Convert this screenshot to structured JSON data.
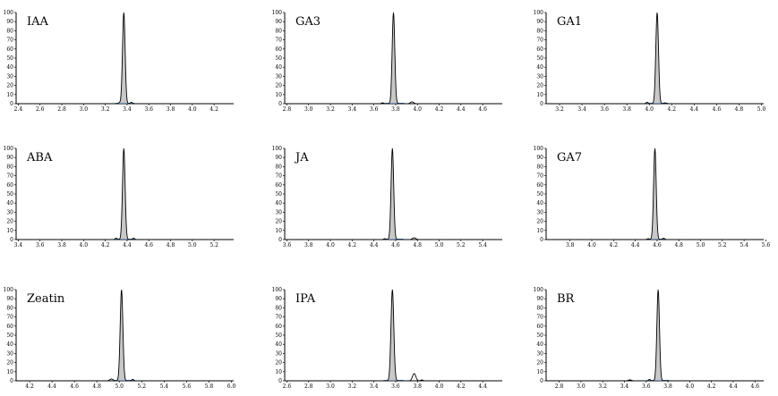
{
  "chart_data": [
    {
      "type": "line",
      "label": "IAA",
      "ylim": [
        0,
        100
      ],
      "xlim": [
        2.38,
        4.38
      ],
      "yticks": [
        0,
        10,
        20,
        30,
        40,
        50,
        60,
        70,
        80,
        90,
        100
      ],
      "xticks": [
        "2.4",
        "2.6",
        "2.8",
        "3.0",
        "3.2",
        "3.4",
        "3.6",
        "3.8",
        "4.0",
        "4.2"
      ],
      "peaks": [
        {
          "rt": 3.37,
          "height": 100,
          "sigma": 0.012
        },
        {
          "rt": 3.44,
          "height": 1.5,
          "sigma": 0.01
        },
        {
          "rt": 3.33,
          "height": 1.0,
          "sigma": 0.01
        }
      ]
    },
    {
      "type": "line",
      "label": "GA3",
      "ylim": [
        0,
        100
      ],
      "xlim": [
        2.78,
        4.78
      ],
      "yticks": [
        0,
        10,
        20,
        30,
        40,
        50,
        60,
        70,
        80,
        90,
        100
      ],
      "xticks": [
        "2.8",
        "3.0",
        "3.2",
        "3.4",
        "3.6",
        "3.8",
        "4.0",
        "4.2",
        "4.4",
        "4.6"
      ],
      "peaks": [
        {
          "rt": 3.78,
          "height": 100,
          "sigma": 0.012
        },
        {
          "rt": 3.95,
          "height": 2.0,
          "sigma": 0.015
        },
        {
          "rt": 3.68,
          "height": 1.0,
          "sigma": 0.01
        }
      ]
    },
    {
      "type": "line",
      "label": "GA1",
      "ylim": [
        0,
        100
      ],
      "xlim": [
        3.08,
        5.02
      ],
      "yticks": [
        0,
        10,
        20,
        30,
        40,
        50,
        60,
        70,
        80,
        90,
        100
      ],
      "xticks": [
        "3.2",
        "3.4",
        "3.6",
        "3.8",
        "4.0",
        "4.2",
        "4.4",
        "4.6",
        "4.8",
        "5.0"
      ],
      "peaks": [
        {
          "rt": 4.07,
          "height": 100,
          "sigma": 0.012
        },
        {
          "rt": 3.98,
          "height": 1.5,
          "sigma": 0.01
        },
        {
          "rt": 4.14,
          "height": 1.0,
          "sigma": 0.01
        }
      ]
    },
    {
      "type": "line",
      "label": "ABA",
      "ylim": [
        0,
        100
      ],
      "xlim": [
        3.38,
        5.38
      ],
      "yticks": [
        0,
        10,
        20,
        30,
        40,
        50,
        60,
        70,
        80,
        90,
        100
      ],
      "xticks": [
        "3.4",
        "3.6",
        "3.8",
        "4.0",
        "4.2",
        "4.4",
        "4.6",
        "4.8",
        "5.0",
        "5.2"
      ],
      "peaks": [
        {
          "rt": 4.37,
          "height": 100,
          "sigma": 0.012
        },
        {
          "rt": 4.3,
          "height": 1.5,
          "sigma": 0.01
        },
        {
          "rt": 4.46,
          "height": 1.5,
          "sigma": 0.01
        }
      ]
    },
    {
      "type": "line",
      "label": "JA",
      "ylim": [
        0,
        100
      ],
      "xlim": [
        3.58,
        5.58
      ],
      "yticks": [
        0,
        10,
        20,
        30,
        40,
        50,
        60,
        70,
        80,
        90,
        100
      ],
      "xticks": [
        "3.6",
        "3.8",
        "4.0",
        "4.2",
        "4.4",
        "4.6",
        "4.8",
        "5.0",
        "5.2",
        "5.4"
      ],
      "peaks": [
        {
          "rt": 4.57,
          "height": 100,
          "sigma": 0.012
        },
        {
          "rt": 4.77,
          "height": 2.0,
          "sigma": 0.015
        },
        {
          "rt": 4.5,
          "height": 1.0,
          "sigma": 0.01
        }
      ]
    },
    {
      "type": "line",
      "label": "GA7",
      "ylim": [
        0,
        100
      ],
      "xlim": [
        3.58,
        5.58
      ],
      "yticks": [
        0,
        10,
        20,
        30,
        40,
        50,
        60,
        70,
        80,
        90,
        100
      ],
      "xticks": [
        "3.8",
        "4.0",
        "4.2",
        "4.4",
        "4.6",
        "4.8",
        "5.0",
        "5.2",
        "5.4",
        "5.6"
      ],
      "peaks": [
        {
          "rt": 4.58,
          "height": 100,
          "sigma": 0.012
        },
        {
          "rt": 4.52,
          "height": 1.0,
          "sigma": 0.01
        },
        {
          "rt": 4.66,
          "height": 1.5,
          "sigma": 0.01
        }
      ]
    },
    {
      "type": "line",
      "label": "Zeatin",
      "ylim": [
        0,
        100
      ],
      "xlim": [
        4.08,
        6.02
      ],
      "yticks": [
        0,
        10,
        20,
        30,
        40,
        50,
        60,
        70,
        80,
        90,
        100
      ],
      "xticks": [
        "4.2",
        "4.4",
        "4.6",
        "4.8",
        "5.0",
        "5.2",
        "5.4",
        "5.6",
        "5.8",
        "6.0"
      ],
      "peaks": [
        {
          "rt": 5.02,
          "height": 100,
          "sigma": 0.012
        },
        {
          "rt": 4.93,
          "height": 2.0,
          "sigma": 0.015
        },
        {
          "rt": 5.12,
          "height": 1.5,
          "sigma": 0.01
        }
      ]
    },
    {
      "type": "line",
      "label": "IPA",
      "ylim": [
        0,
        100
      ],
      "xlim": [
        2.58,
        4.58
      ],
      "yticks": [
        0,
        10,
        20,
        30,
        40,
        50,
        60,
        70,
        80,
        90,
        100
      ],
      "xticks": [
        "2.6",
        "2.8",
        "3.0",
        "3.2",
        "3.4",
        "3.6",
        "3.8",
        "4.0",
        "4.2",
        "4.4"
      ],
      "peaks": [
        {
          "rt": 3.57,
          "height": 100,
          "sigma": 0.013
        },
        {
          "rt": 3.77,
          "height": 8.0,
          "sigma": 0.015
        },
        {
          "rt": 3.84,
          "height": 1.0,
          "sigma": 0.01
        }
      ]
    },
    {
      "type": "line",
      "label": "BR",
      "ylim": [
        0,
        100
      ],
      "xlim": [
        2.68,
        4.68
      ],
      "yticks": [
        0,
        10,
        20,
        30,
        40,
        50,
        60,
        70,
        80,
        90,
        100
      ],
      "xticks": [
        "2.8",
        "3.0",
        "3.2",
        "3.4",
        "3.6",
        "3.8",
        "4.0",
        "4.2",
        "4.4",
        "4.6"
      ],
      "peaks": [
        {
          "rt": 3.71,
          "height": 100,
          "sigma": 0.012
        },
        {
          "rt": 3.45,
          "height": 1.0,
          "sigma": 0.015
        },
        {
          "rt": 3.63,
          "height": 1.5,
          "sigma": 0.01
        }
      ]
    }
  ],
  "colors": {
    "peak_fill": "#c8c8c8",
    "baseline_trace": "#5b7fb5",
    "axis": "#000000"
  }
}
